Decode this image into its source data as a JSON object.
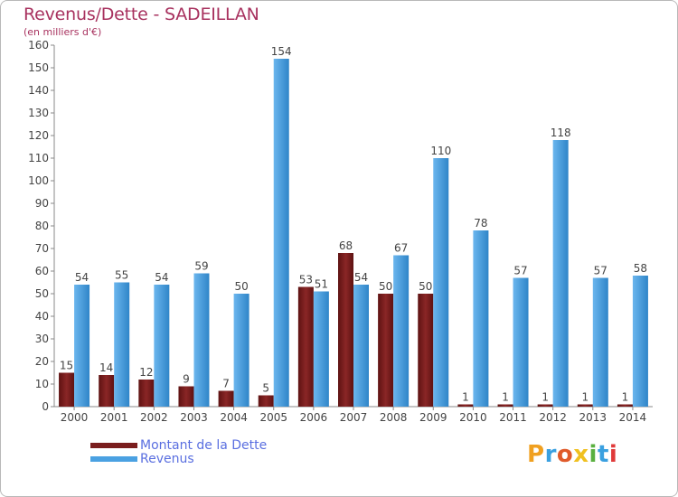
{
  "title": "Revenus/Dette - SADEILLAN",
  "subtitle": "(en milliers d'€)",
  "colors": {
    "dette": "#7a1e1e",
    "revenus": "#4aa1e2",
    "title": "#a8325f",
    "legend_text": "#5a6fe0"
  },
  "legend": [
    {
      "label": "Montant de la Dette",
      "color": "#7a1e1e"
    },
    {
      "label": "Revenus",
      "color": "#4aa1e2"
    }
  ],
  "logo": {
    "text": "Proxiti",
    "letters": [
      "P",
      "r",
      "o",
      "x",
      "i",
      "t",
      "i"
    ],
    "colors": [
      "#f0a020",
      "#3aa0e0",
      "#e05a2a",
      "#f0c020",
      "#5ab040",
      "#3aa0e0",
      "#e03a3a"
    ]
  },
  "chart_data": {
    "type": "bar",
    "categories": [
      "2000",
      "2001",
      "2002",
      "2003",
      "2004",
      "2005",
      "2006",
      "2007",
      "2008",
      "2009",
      "2010",
      "2011",
      "2012",
      "2013",
      "2014"
    ],
    "series": [
      {
        "name": "Montant de la Dette",
        "values": [
          15,
          14,
          12,
          9,
          7,
          5,
          53,
          68,
          50,
          50,
          1,
          1,
          1,
          1,
          1
        ]
      },
      {
        "name": "Revenus",
        "values": [
          54,
          55,
          54,
          59,
          50,
          154,
          51,
          54,
          67,
          110,
          78,
          57,
          118,
          57,
          58
        ]
      }
    ],
    "ylim": [
      0,
      160
    ],
    "yticks": [
      0,
      10,
      20,
      30,
      40,
      50,
      60,
      70,
      80,
      90,
      100,
      110,
      120,
      130,
      140,
      150,
      160
    ],
    "grid": false,
    "legend_position": "bottom-left"
  }
}
